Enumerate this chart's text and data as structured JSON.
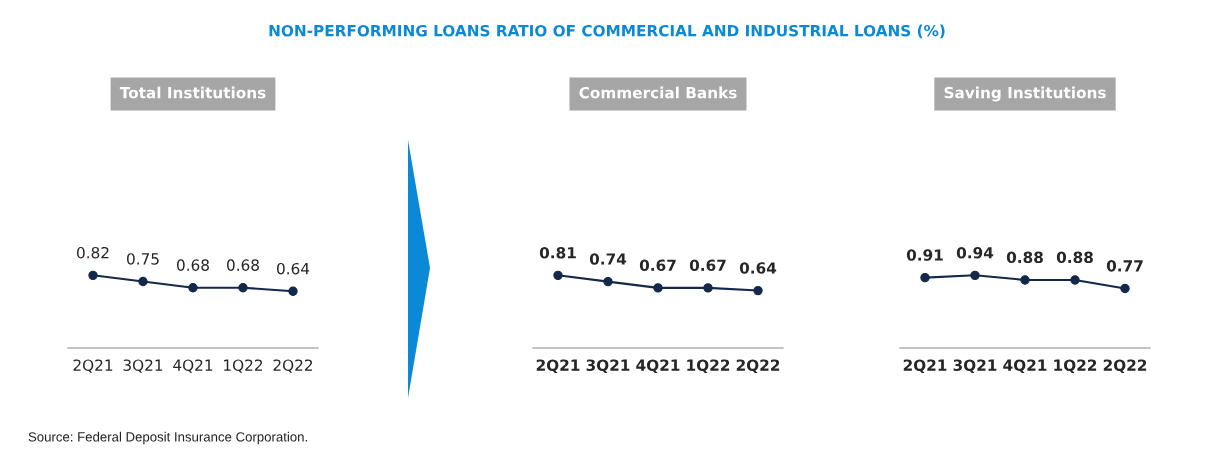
{
  "chart_data": [
    {
      "type": "line",
      "title": "Total Institutions",
      "categories": [
        "2Q21",
        "3Q21",
        "4Q21",
        "1Q22",
        "2Q22"
      ],
      "series": [
        {
          "color": "#14284b",
          "values": [
            0.82,
            0.75,
            0.68,
            0.68,
            0.64
          ]
        }
      ],
      "data_labels": true,
      "marker": "circle",
      "line_style": "solid",
      "grid": false,
      "legend": false,
      "tick_labels": "x",
      "annotations": [
        "NON-PERFORMING LOANS RATIO OF COMMERCIAL AND INDUSTRIAL LOANS (%)",
        "Source: Federal Deposit Insurance Corporation."
      ]
    },
    {
      "type": "line",
      "title": "Commercial Banks",
      "categories": [
        "2Q21",
        "3Q21",
        "4Q21",
        "1Q22",
        "2Q22"
      ],
      "series": [
        {
          "color": "#14284b",
          "values": [
            0.81,
            0.74,
            0.67,
            0.67,
            0.64
          ]
        }
      ],
      "data_labels": true,
      "marker": "circle",
      "line_style": "solid",
      "grid": false,
      "legend": false,
      "tick_labels": "x"
    },
    {
      "type": "line",
      "title": "Saving Institutions",
      "categories": [
        "2Q21",
        "3Q21",
        "4Q21",
        "1Q22",
        "2Q22"
      ],
      "series": [
        {
          "color": "#14284b",
          "values": [
            0.91,
            0.94,
            0.88,
            0.88,
            0.77
          ]
        }
      ],
      "data_labels": true,
      "marker": "circle",
      "line_style": "solid",
      "grid": false,
      "legend": false,
      "tick_labels": "x"
    }
  ]
}
